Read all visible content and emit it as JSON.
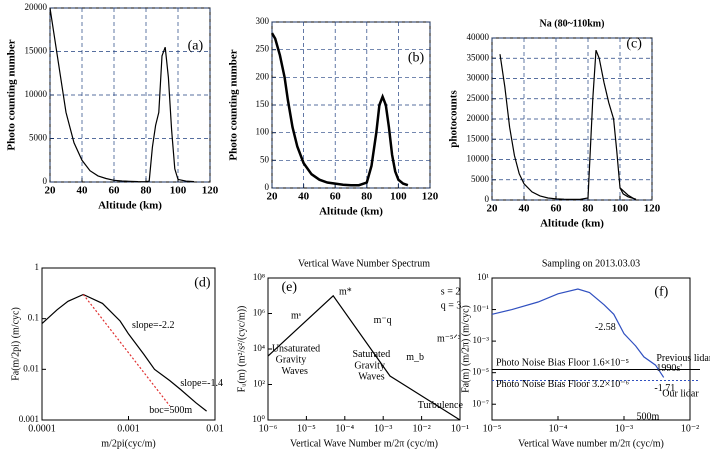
{
  "chart_data": [
    {
      "type": "line",
      "xlabel": "Altitude (km)",
      "ylabel": "Photo counting number",
      "annotations": [
        "(a)"
      ],
      "xlim": [
        20,
        120
      ],
      "xticks": [
        20,
        40,
        60,
        80,
        100,
        120
      ],
      "ylim": [
        0,
        20000
      ],
      "yticks": [
        0,
        5000,
        10000,
        15000,
        20000
      ],
      "grid": true,
      "series": [
        {
          "color": "#000000",
          "x": [
            20,
            25,
            30,
            35,
            40,
            45,
            50,
            55,
            60,
            65,
            70,
            75,
            80,
            82,
            84,
            86,
            88,
            90,
            92,
            94,
            96,
            98,
            100,
            105,
            110
          ],
          "values": [
            20000,
            14000,
            8000,
            4500,
            2500,
            1300,
            700,
            400,
            200,
            120,
            80,
            50,
            40,
            100,
            4000,
            6500,
            8000,
            14500,
            15500,
            12000,
            6000,
            1500,
            300,
            100,
            50
          ]
        }
      ]
    },
    {
      "type": "line",
      "xlabel": "Altitude (km)",
      "ylabel": "Photo counting number",
      "annotations": [
        "(b)"
      ],
      "xlim": [
        20,
        120
      ],
      "xticks": [
        20,
        40,
        60,
        80,
        100,
        120
      ],
      "ylim": [
        0,
        300
      ],
      "yticks": [
        0,
        50,
        100,
        150,
        200,
        250,
        300
      ],
      "grid": true,
      "series": [
        {
          "color": "#000000",
          "x": [
            20,
            22,
            25,
            28,
            30,
            33,
            36,
            40,
            45,
            50,
            55,
            60,
            65,
            70,
            75,
            80,
            83,
            86,
            88,
            90,
            92,
            94,
            96,
            98,
            100,
            103,
            106
          ],
          "values": [
            280,
            270,
            240,
            200,
            160,
            110,
            75,
            45,
            25,
            15,
            10,
            8,
            6,
            5,
            5,
            10,
            40,
            100,
            150,
            165,
            150,
            110,
            60,
            30,
            15,
            8,
            5
          ]
        }
      ]
    },
    {
      "type": "line",
      "title": "Na (80~110km)",
      "xlabel": "Altitude (km)",
      "ylabel": "photocounts",
      "annotations": [
        "(c)"
      ],
      "xlim": [
        20,
        120
      ],
      "xticks": [
        20,
        40,
        60,
        80,
        100,
        120
      ],
      "ylim": [
        0,
        40000
      ],
      "yticks": [
        0,
        5000,
        10000,
        15000,
        20000,
        25000,
        30000,
        35000,
        40000
      ],
      "grid": true,
      "series": [
        {
          "color": "#000000",
          "x": [
            25,
            28,
            31,
            34,
            37,
            40,
            45,
            50,
            55,
            60,
            65,
            70,
            75,
            80,
            83,
            85,
            87,
            90,
            93,
            96,
            98,
            100,
            102,
            105,
            110
          ],
          "values": [
            36000,
            28000,
            18000,
            11000,
            6500,
            4000,
            2000,
            1000,
            500,
            300,
            200,
            150,
            150,
            500,
            25000,
            37000,
            35000,
            29000,
            24000,
            20000,
            12000,
            3000,
            1500,
            800,
            200
          ]
        },
        {
          "color": "#000000",
          "x": [
            100,
            105,
            110
          ],
          "values": [
            3000,
            1200,
            0
          ]
        }
      ]
    },
    {
      "type": "line",
      "xlabel": "m/2pi(cyc/m)",
      "ylabel": "Fa(m/2pi) (m/cyc)",
      "annotations": [
        "(d)",
        "slope=-2.2",
        "slope=-1.4",
        "boc=500m"
      ],
      "xlog": true,
      "ylog": true,
      "xlim": [
        0.0001,
        0.01
      ],
      "xticks": [
        0.0001,
        0.001,
        0.01
      ],
      "ylim": [
        0.001,
        1
      ],
      "yticks": [
        1,
        0.1,
        0.01,
        0.001
      ],
      "series": [
        {
          "color": "#000000",
          "x": [
            0.0001,
            0.00015,
            0.0002,
            0.0003,
            0.0005,
            0.0008,
            0.001,
            0.0015,
            0.002,
            0.003,
            0.004,
            0.006,
            0.008
          ],
          "values": [
            0.08,
            0.15,
            0.22,
            0.3,
            0.2,
            0.09,
            0.05,
            0.02,
            0.01,
            0.006,
            0.004,
            0.0022,
            0.0015
          ]
        },
        {
          "color": "#e03030",
          "dash": true,
          "x": [
            0.0003,
            0.003
          ],
          "values": [
            0.3,
            0.0019
          ]
        }
      ]
    },
    {
      "type": "line",
      "title": "Vertical Wave Number Spectrum",
      "xlabel": "Vertical Wave Number m/2π  (cyc/m)",
      "ylabel": "Fᵤ(m)  (m²/s²/(cyc/m))",
      "annotations": [
        "(e)",
        "m*",
        "mˢ",
        "m⁻q",
        "m_b",
        "m⁻⁵ᐟ³",
        "Unsaturated",
        "Gravity",
        "Waves",
        "Saturated",
        "Gravity",
        "Waves",
        "Turbulence",
        "s = 2",
        "q = 3"
      ],
      "xlog": true,
      "ylog": true,
      "xlim": [
        1e-06,
        0.1
      ],
      "xticks": [
        {
          "value": 1e-06,
          "label": "10⁻⁶"
        },
        {
          "value": 1e-05,
          "label": "10⁻⁵"
        },
        {
          "value": 0.0001,
          "label": "10⁻⁴"
        },
        {
          "value": 0.001,
          "label": "10⁻³"
        },
        {
          "value": 0.01,
          "label": "10⁻²"
        },
        {
          "value": 0.1,
          "label": "10⁻¹"
        }
      ],
      "ylim": [
        1,
        100000000
      ],
      "yticks": [
        {
          "value": 1,
          "label": "10⁰"
        },
        {
          "value": 100,
          "label": "10²"
        },
        {
          "value": 10000,
          "label": "10⁴"
        },
        {
          "value": 1000000,
          "label": "10⁶"
        },
        {
          "value": 100000000,
          "label": "10⁸"
        }
      ],
      "series": [
        {
          "color": "#000000",
          "x": [
            1e-06,
            5e-05,
            0.0015,
            0.1
          ],
          "values": [
            4000,
            10000000,
            300,
            1
          ]
        }
      ]
    },
    {
      "type": "line",
      "title": "Sampling on 2013.03.03",
      "xlabel": "Vertical Wave number m/2π (cyc/m)",
      "ylabel": "Fa(m) (m/2π) (m/cyc)",
      "annotations": [
        "(f)",
        "-2.58",
        "-1.71",
        "500m",
        "Photo Noise Bias Floor 1.6×10⁻⁵",
        "Photo Noise Bias Floor 3.2×10⁻⁶",
        "Previous lidar",
        "1990s'",
        "Our lidar"
      ],
      "xlog": true,
      "ylog": true,
      "xlim": [
        1e-05,
        0.01
      ],
      "xticks": [
        {
          "value": 1e-05,
          "label": "10⁻⁵"
        },
        {
          "value": 0.0001,
          "label": "10⁻⁴"
        },
        {
          "value": 0.001,
          "label": "10⁻³"
        },
        {
          "value": 0.01,
          "label": "10⁻²"
        }
      ],
      "ylim": [
        1e-08,
        10
      ],
      "yticks": [
        {
          "value": 10,
          "label": "10¹"
        },
        {
          "value": 0.1,
          "label": "10⁻¹"
        },
        {
          "value": 0.001,
          "label": "10⁻³"
        },
        {
          "value": 1e-05,
          "label": "10⁻⁵"
        },
        {
          "value": 1e-07,
          "label": "10⁻⁷"
        }
      ],
      "hlines": [
        1.6e-05,
        3.2e-06
      ],
      "series": [
        {
          "color": "#3050c0",
          "x": [
            1e-05,
            2e-05,
            5e-05,
            0.0001,
            0.0002,
            0.0003,
            0.0005,
            0.0007,
            0.001,
            0.0015,
            0.002,
            0.003,
            0.004
          ],
          "values": [
            0.05,
            0.1,
            0.3,
            1,
            2,
            1.2,
            0.2,
            0.05,
            0.003,
            0.0005,
            0.0001,
            3e-05,
            5e-06
          ]
        }
      ]
    }
  ]
}
